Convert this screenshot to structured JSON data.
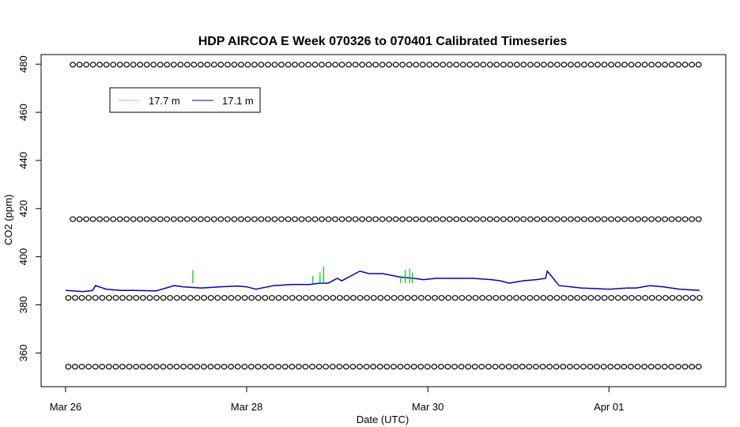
{
  "chart_data": {
    "type": "line",
    "title": "HDP AIRCOA E  Week 070326 to 070401  Calibrated Timeseries",
    "xlabel": "Date (UTC)",
    "ylabel": "CO2 (ppm)",
    "x_ticks": [
      "Mar 26",
      "Mar 28",
      "Mar 30",
      "Apr 01"
    ],
    "y_ticks": [
      360,
      380,
      400,
      420,
      440,
      460,
      480
    ],
    "xlim": [
      -0.27,
      7.29
    ],
    "ylim": [
      346,
      484
    ],
    "grid": false,
    "legend": {
      "placement": "top-left",
      "entries": [
        "17.7 m",
        "17.1 m"
      ]
    },
    "colors": {
      "17.7 m": "#00cc00",
      "17.1 m": "#0000cc",
      "markers": "#000000"
    },
    "series": [
      {
        "name": "17.1 m",
        "style": "line",
        "x": [
          0,
          0.2,
          0.3,
          0.33,
          0.45,
          0.6,
          0.75,
          1.0,
          1.2,
          1.3,
          1.5,
          1.7,
          1.9,
          2.0,
          2.1,
          2.3,
          2.5,
          2.7,
          2.8,
          2.9,
          3.0,
          3.05,
          3.15,
          3.25,
          3.35,
          3.5,
          3.7,
          3.85,
          3.95,
          4.1,
          4.3,
          4.5,
          4.7,
          4.8,
          4.9,
          5.05,
          5.2,
          5.3,
          5.32,
          5.45,
          5.7,
          6.0,
          6.2,
          6.3,
          6.45,
          6.6,
          6.78,
          7.0
        ],
        "y": [
          386,
          385.5,
          386,
          388,
          386.5,
          386,
          386,
          385.8,
          388,
          387.5,
          387,
          387.5,
          387.8,
          387.5,
          386.5,
          388,
          388.5,
          388.5,
          389,
          389,
          391,
          390,
          392,
          394,
          393,
          393,
          391.5,
          391,
          390.5,
          391,
          391,
          391,
          390.5,
          390,
          389,
          390,
          390.5,
          391,
          394,
          388,
          387,
          386.5,
          387,
          387,
          388,
          387.5,
          386.5,
          386
        ]
      },
      {
        "name": "17.7 m",
        "style": "spikes",
        "x": [
          1.405,
          2.73,
          2.81,
          2.85,
          3.7,
          3.75,
          3.8,
          3.83
        ],
        "y": [
          394.5,
          392,
          393.5,
          396,
          392,
          394.5,
          395,
          393.5
        ]
      },
      {
        "name": "calibration",
        "style": "points",
        "levels": [
          479.8,
          415.6,
          382.9,
          354.3
        ],
        "level_x_range": [
          [
            0.08,
            6.99
          ],
          [
            0.08,
            6.99
          ],
          [
            0.03,
            7.0
          ],
          [
            0.03,
            6.99
          ]
        ]
      }
    ]
  }
}
